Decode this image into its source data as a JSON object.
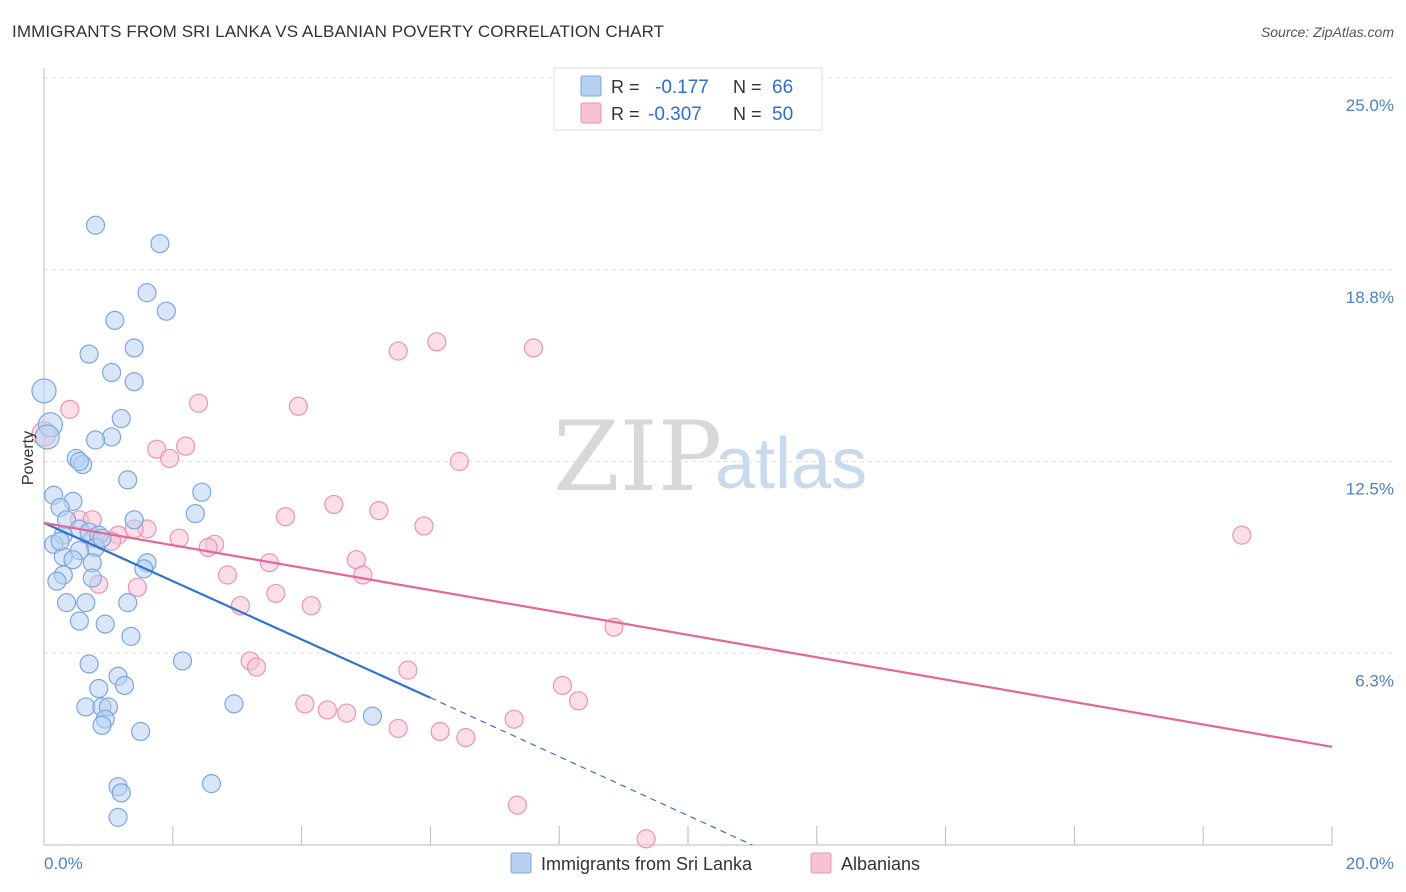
{
  "title": "IMMIGRANTS FROM SRI LANKA VS ALBANIAN POVERTY CORRELATION CHART",
  "source": "Source: ZipAtlas.com",
  "watermark": {
    "zip": "ZIP",
    "atlas": "atlas"
  },
  "colors": {
    "blue_fill": "#b8d1f3",
    "blue_stroke": "#7aa7e0",
    "blue_line": "#2e74d3",
    "pink_fill": "#f7c3d3",
    "pink_stroke": "#e995b2",
    "pink_line": "#e5679a",
    "accent_text": "#4a7fd0"
  },
  "legend": {
    "rows": [
      {
        "r_label": "R =",
        "r_value": "-0.177",
        "n_label": "N =",
        "n_value": "66"
      },
      {
        "r_label": "R =",
        "r_value": "-0.307",
        "n_label": "N =",
        "n_value": "50"
      }
    ]
  },
  "chart_data": {
    "type": "scatter",
    "title": "IMMIGRANTS FROM SRI LANKA VS ALBANIAN POVERTY CORRELATION CHART",
    "xlabel": "",
    "ylabel": "Poverty",
    "xlim": [
      0,
      20
    ],
    "ylim": [
      0,
      25
    ],
    "x_tick_labels": [
      "0.0%",
      "20.0%"
    ],
    "y_ticks": [
      6.25,
      12.5,
      18.75,
      25.0
    ],
    "y_tick_labels": [
      "6.3%",
      "12.5%",
      "18.8%",
      "25.0%"
    ],
    "grid": true,
    "legend_position": "top-center",
    "series": [
      {
        "name": "Immigrants from Sri Lanka",
        "color": "blue",
        "r": -0.177,
        "n": 66,
        "trend": {
          "x_start": 0.0,
          "y_start": 10.5,
          "x_end_solid": 6.0,
          "y_end_solid": 4.8,
          "x_end_dashed": 11.0,
          "y_end_dashed": 0.0
        },
        "points": [
          [
            0.0,
            14.8,
            2
          ],
          [
            0.1,
            13.7,
            2
          ],
          [
            0.05,
            13.3,
            2
          ],
          [
            0.8,
            20.2,
            1
          ],
          [
            1.8,
            19.6,
            1
          ],
          [
            1.6,
            18.0,
            1
          ],
          [
            1.9,
            17.4,
            1
          ],
          [
            1.1,
            17.1,
            1
          ],
          [
            0.7,
            16.0,
            1
          ],
          [
            1.4,
            16.2,
            1
          ],
          [
            1.05,
            15.4,
            1
          ],
          [
            1.4,
            15.1,
            1
          ],
          [
            1.2,
            13.9,
            1
          ],
          [
            1.05,
            13.3,
            1
          ],
          [
            0.8,
            13.2,
            1
          ],
          [
            0.5,
            12.6,
            1
          ],
          [
            0.6,
            12.4,
            1
          ],
          [
            1.3,
            11.9,
            1
          ],
          [
            0.15,
            11.4,
            1
          ],
          [
            0.45,
            11.2,
            1
          ],
          [
            0.25,
            11.0,
            1
          ],
          [
            2.45,
            11.5,
            1
          ],
          [
            2.35,
            10.8,
            1
          ],
          [
            0.35,
            10.6,
            1
          ],
          [
            0.55,
            10.3,
            1
          ],
          [
            0.7,
            10.2,
            1
          ],
          [
            0.85,
            10.1,
            1
          ],
          [
            0.3,
            10.1,
            1
          ],
          [
            1.4,
            10.6,
            1
          ],
          [
            0.15,
            9.8,
            1
          ],
          [
            0.8,
            9.7,
            1
          ],
          [
            0.55,
            9.6,
            1
          ],
          [
            0.3,
            9.4,
            1
          ],
          [
            0.45,
            9.3,
            1
          ],
          [
            0.75,
            9.2,
            1
          ],
          [
            1.6,
            9.2,
            1
          ],
          [
            1.55,
            9.0,
            1
          ],
          [
            0.3,
            8.8,
            1
          ],
          [
            0.2,
            8.6,
            1
          ],
          [
            0.75,
            8.7,
            1
          ],
          [
            0.35,
            7.9,
            1
          ],
          [
            0.65,
            7.9,
            1
          ],
          [
            1.3,
            7.9,
            1
          ],
          [
            0.55,
            7.3,
            1
          ],
          [
            0.95,
            7.2,
            1
          ],
          [
            1.35,
            6.8,
            1
          ],
          [
            2.15,
            6.0,
            1
          ],
          [
            0.7,
            5.9,
            1
          ],
          [
            1.15,
            5.5,
            1
          ],
          [
            1.25,
            5.2,
            1
          ],
          [
            0.85,
            5.1,
            1
          ],
          [
            0.65,
            4.5,
            1
          ],
          [
            0.9,
            4.5,
            1
          ],
          [
            1.0,
            4.5,
            1
          ],
          [
            2.95,
            4.6,
            1
          ],
          [
            5.1,
            4.2,
            1
          ],
          [
            0.95,
            4.1,
            1
          ],
          [
            0.9,
            3.9,
            1
          ],
          [
            1.5,
            3.7,
            1
          ],
          [
            1.15,
            1.9,
            1
          ],
          [
            2.6,
            2.0,
            1
          ],
          [
            1.2,
            1.7,
            1
          ],
          [
            1.15,
            0.9,
            1
          ],
          [
            0.55,
            12.5,
            1
          ],
          [
            0.25,
            9.9,
            1
          ],
          [
            0.9,
            10.0,
            1
          ]
        ]
      },
      {
        "name": "Albanians",
        "color": "pink",
        "r": -0.307,
        "n": 50,
        "trend": {
          "x_start": 0.0,
          "y_start": 10.5,
          "x_end_solid": 20.0,
          "y_end_solid": 3.2
        },
        "points": [
          [
            0.0,
            13.4,
            2
          ],
          [
            0.4,
            14.2,
            1
          ],
          [
            6.1,
            16.4,
            1
          ],
          [
            7.6,
            16.2,
            1
          ],
          [
            5.5,
            16.1,
            1
          ],
          [
            2.4,
            14.4,
            1
          ],
          [
            3.95,
            14.3,
            1
          ],
          [
            1.75,
            12.9,
            1
          ],
          [
            2.2,
            13.0,
            1
          ],
          [
            1.95,
            12.6,
            1
          ],
          [
            6.45,
            12.5,
            1
          ],
          [
            4.5,
            11.1,
            1
          ],
          [
            5.2,
            10.9,
            1
          ],
          [
            3.75,
            10.7,
            1
          ],
          [
            5.9,
            10.4,
            1
          ],
          [
            1.6,
            10.3,
            1
          ],
          [
            1.4,
            10.3,
            1
          ],
          [
            0.55,
            10.6,
            1
          ],
          [
            1.15,
            10.1,
            1
          ],
          [
            0.75,
            10.0,
            1
          ],
          [
            1.05,
            9.9,
            1
          ],
          [
            2.1,
            10.0,
            1
          ],
          [
            2.65,
            9.8,
            1
          ],
          [
            2.55,
            9.7,
            1
          ],
          [
            4.85,
            9.3,
            1
          ],
          [
            3.5,
            9.2,
            1
          ],
          [
            2.85,
            8.8,
            1
          ],
          [
            4.95,
            8.8,
            1
          ],
          [
            0.85,
            8.5,
            1
          ],
          [
            1.45,
            8.4,
            1
          ],
          [
            3.6,
            8.2,
            1
          ],
          [
            3.05,
            7.8,
            1
          ],
          [
            4.15,
            7.8,
            1
          ],
          [
            8.85,
            7.1,
            1
          ],
          [
            3.2,
            6.0,
            1
          ],
          [
            3.3,
            5.8,
            1
          ],
          [
            5.65,
            5.7,
            1
          ],
          [
            8.05,
            5.2,
            1
          ],
          [
            8.3,
            4.7,
            1
          ],
          [
            4.05,
            4.6,
            1
          ],
          [
            4.4,
            4.4,
            1
          ],
          [
            4.7,
            4.3,
            1
          ],
          [
            7.3,
            4.1,
            1
          ],
          [
            5.5,
            3.8,
            1
          ],
          [
            6.15,
            3.7,
            1
          ],
          [
            6.55,
            3.5,
            1
          ],
          [
            18.6,
            10.1,
            1
          ],
          [
            7.35,
            1.3,
            1
          ],
          [
            9.35,
            0.2,
            1
          ],
          [
            0.75,
            10.6,
            1
          ]
        ]
      }
    ]
  }
}
